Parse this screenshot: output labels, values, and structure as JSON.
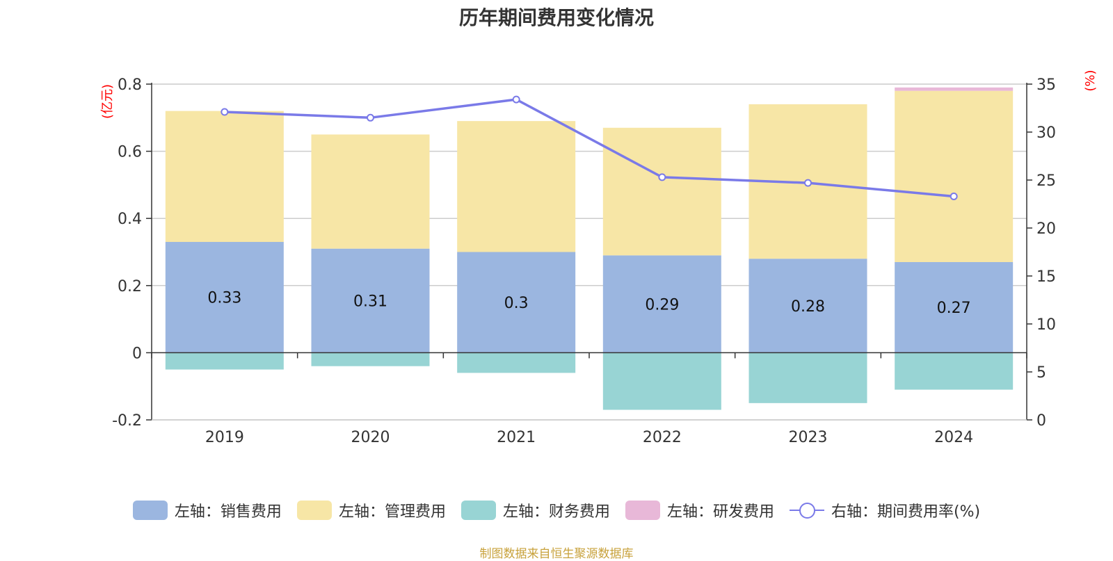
{
  "chart_data": {
    "type": "bar",
    "title": "历年期间费用变化情况",
    "categories": [
      "2019",
      "2020",
      "2021",
      "2022",
      "2023",
      "2024"
    ],
    "stacked": true,
    "series": [
      {
        "name": "左轴：销售费用",
        "axis": "left",
        "color": "#9bb6e0",
        "values": [
          0.33,
          0.31,
          0.3,
          0.29,
          0.28,
          0.27
        ],
        "labels": [
          "0.33",
          "0.31",
          "0.3",
          "0.29",
          "0.28",
          "0.27"
        ]
      },
      {
        "name": "左轴：管理费用",
        "axis": "left",
        "color": "#f7e6a6",
        "values": [
          0.39,
          0.34,
          0.39,
          0.38,
          0.46,
          0.51
        ]
      },
      {
        "name": "左轴：财务费用",
        "axis": "left",
        "color": "#98d4d4",
        "values": [
          -0.05,
          -0.04,
          -0.06,
          -0.17,
          -0.15,
          -0.11
        ]
      },
      {
        "name": "左轴：研发费用",
        "axis": "left",
        "color": "#e8b8d8",
        "values": [
          0,
          0,
          0,
          0,
          0,
          0.01
        ]
      },
      {
        "name": "右轴：期间费用率(%)",
        "axis": "right",
        "type": "line",
        "color": "#7a7ae8",
        "values": [
          32.1,
          31.5,
          33.4,
          25.3,
          24.7,
          23.3
        ]
      }
    ],
    "ylabel_left": "(亿元)",
    "ylabel_right": "(%)",
    "ylim_left": [
      -0.2,
      0.8
    ],
    "ylim_right": [
      0,
      35
    ],
    "yticks_left": [
      "-0.2",
      "0",
      "0.2",
      "0.4",
      "0.6",
      "0.8"
    ],
    "yticks_right": [
      "0",
      "5",
      "10",
      "15",
      "20",
      "25",
      "30",
      "35"
    ],
    "legend_position": "bottom"
  },
  "source_note": "制图数据来自恒生聚源数据库"
}
